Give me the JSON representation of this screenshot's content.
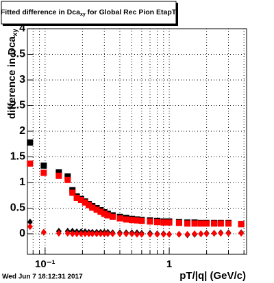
{
  "chart_data": {
    "type": "scatter",
    "title": "Fitted difference in Dca",
    "title_subscript": "xy",
    "title_rest": " for Global Rec Pion EtapT",
    "y_label": "difference in Dca",
    "y_label_subscript": "xy",
    "x_label": "pT/|q| (GeV/c)",
    "timestamp": "Wed Jun  7 18:12:31 2017",
    "log_x": true,
    "grid": true,
    "xlim": [
      0.072,
      4.2
    ],
    "ylim": [
      -0.4,
      4
    ],
    "xticks": [
      {
        "value": 0.1,
        "label": "10⁻¹"
      },
      1
    ],
    "xminor": [
      0.08,
      0.09,
      0.2,
      0.3,
      0.4,
      0.5,
      0.6,
      0.7,
      0.8,
      0.9,
      2,
      3,
      4
    ],
    "yticks": [
      0,
      0.5,
      1,
      1.5,
      2,
      2.5,
      3,
      3.5,
      4
    ],
    "x": [
      0.0756,
      0.0975,
      0.129,
      0.152,
      0.166,
      0.18,
      0.195,
      0.21,
      0.225,
      0.24,
      0.26,
      0.28,
      0.3,
      0.32,
      0.35,
      0.4,
      0.45,
      0.5,
      0.55,
      0.6,
      0.7,
      0.8,
      0.9,
      1.0,
      1.2,
      1.4,
      1.6,
      1.8,
      2.0,
      2.3,
      2.6,
      3.0,
      3.8
    ],
    "series": [
      {
        "color": "#000000",
        "marker": "square",
        "values": [
          1.78,
          1.33,
          1.2,
          1.12,
          0.85,
          0.73,
          0.68,
          0.63,
          0.58,
          0.54,
          0.5,
          0.46,
          0.42,
          0.39,
          0.36,
          0.33,
          0.31,
          0.29,
          0.28,
          0.27,
          0.26,
          0.25,
          0.24,
          0.24,
          0.23,
          0.22,
          0.22,
          0.21,
          0.21,
          0.21,
          0.21,
          0.21,
          0.19
        ]
      },
      {
        "color": "#ff0000",
        "marker": "square",
        "values": [
          1.37,
          1.19,
          1.13,
          1.05,
          0.8,
          0.7,
          0.66,
          0.61,
          0.56,
          0.51,
          0.47,
          0.43,
          0.39,
          0.36,
          0.33,
          0.3,
          0.28,
          0.27,
          0.26,
          0.25,
          0.24,
          0.23,
          0.22,
          0.22,
          0.21,
          0.2,
          0.2,
          0.2,
          0.2,
          0.2,
          0.2,
          0.2,
          0.19
        ]
      },
      {
        "color": "#000000",
        "marker": "diamond",
        "values": [
          0.23,
          0.03,
          0.05,
          0.05,
          0.05,
          0.04,
          0.04,
          0.04,
          0.03,
          0.03,
          0.03,
          0.03,
          0.03,
          0.03,
          0.02,
          0.02,
          0.02,
          0.02,
          0.02,
          0.01,
          0.01,
          0.0,
          0.0,
          -0.01,
          -0.01,
          -0.02,
          -0.01,
          0.0,
          0.01,
          0.01,
          0.02,
          0.02,
          0.02
        ]
      },
      {
        "color": "#ff0000",
        "marker": "diamond",
        "values": [
          0.14,
          0.03,
          0.01,
          0.01,
          0.0,
          0.0,
          0.0,
          0.0,
          0.0,
          0.0,
          0.0,
          0.0,
          0.0,
          0.0,
          0.0,
          0.0,
          0.0,
          0.0,
          -0.01,
          -0.01,
          -0.01,
          -0.01,
          -0.01,
          -0.01,
          -0.01,
          -0.01,
          0.0,
          0.0,
          0.0,
          0.01,
          0.01,
          0.01,
          0.01
        ]
      }
    ]
  }
}
